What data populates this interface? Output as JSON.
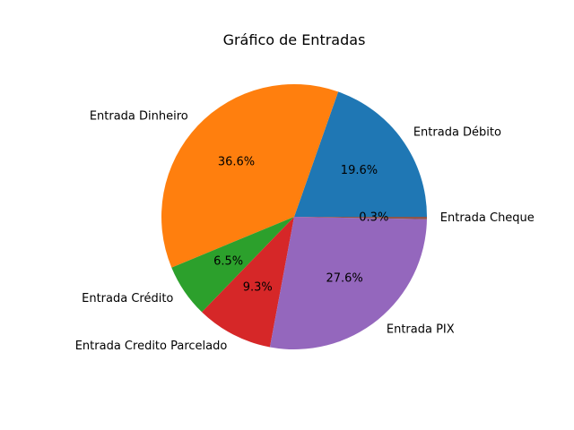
{
  "chart_data": {
    "type": "pie",
    "title": "Gráfico de Entradas",
    "start_angle": 0,
    "direction": "counterclockwise",
    "slices": [
      {
        "label": "Entrada Débito",
        "value": 19.6,
        "pct_label": "19.6%",
        "color": "#1f77b4"
      },
      {
        "label": "Entrada Dinheiro",
        "value": 36.6,
        "pct_label": "36.6%",
        "color": "#ff7f0e"
      },
      {
        "label": "Entrada Crédito",
        "value": 6.5,
        "pct_label": "6.5%",
        "color": "#2ca02c"
      },
      {
        "label": "Entrada Credito Parcelado",
        "value": 9.3,
        "pct_label": "9.3%",
        "color": "#d62728"
      },
      {
        "label": "Entrada PIX",
        "value": 27.6,
        "pct_label": "27.6%",
        "color": "#9467bd"
      },
      {
        "label": "Entrada Cheque",
        "value": 0.3,
        "pct_label": "0.3%",
        "color": "#8c564b"
      }
    ]
  }
}
